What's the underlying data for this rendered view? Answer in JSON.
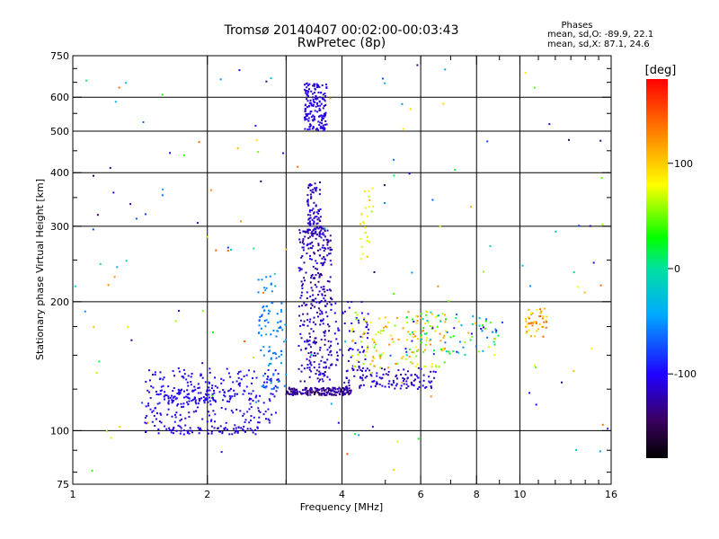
{
  "chart_data": {
    "type": "scatter",
    "title": "Tromsø 20140407 00:02:00-00:03:43",
    "subtitle": "RwPretec (8p)",
    "xlabel": "Frequency [MHz]",
    "ylabel": "Stationary phase Virtual Height [km]",
    "x_scale": "log",
    "y_scale": "log",
    "xlim": [
      1,
      16
    ],
    "ylim": [
      75,
      750
    ],
    "x_ticks": [
      1,
      2,
      4,
      6,
      8,
      10,
      16
    ],
    "x_tick_labels": [
      "1",
      "2",
      "4",
      "6",
      "8",
      "10",
      "16"
    ],
    "x_minor_ticks": [
      3,
      5,
      7,
      9,
      11,
      12,
      13,
      14,
      15
    ],
    "y_ticks": [
      75,
      100,
      200,
      300,
      400,
      500,
      600,
      750
    ],
    "y_tick_labels": [
      "75",
      "100",
      "200",
      "300",
      "400",
      "500",
      "600",
      "750"
    ],
    "y_minor_ticks": [
      80,
      90,
      125,
      150,
      175,
      250,
      350,
      450,
      550,
      650,
      700
    ],
    "grid_x": [
      2,
      3,
      4,
      6,
      8,
      10
    ],
    "grid_y": [
      100,
      200,
      300,
      400,
      500,
      600
    ],
    "phase_stats": {
      "heading": "Phases",
      "line1": "mean, sd,O: -89.9, 22.1",
      "line2": "mean, sd,X:  87.1, 24.6"
    },
    "colorbar": {
      "label": "[deg]",
      "range": [
        -180,
        180
      ],
      "ticks": [
        100,
        0,
        -100
      ],
      "tick_labels": [
        "100",
        "0",
        "-100"
      ]
    },
    "colors": {
      "grid": "#000000",
      "background": "#ffffff"
    },
    "clusters": [
      {
        "name": "o-trace-low",
        "x_range": [
          1.45,
          2.6
        ],
        "y_range": [
          98,
          103
        ],
        "n": 80,
        "phase": [
          -120,
          -100
        ]
      },
      {
        "name": "o-trace-rise",
        "x_range": [
          1.45,
          2.9
        ],
        "y_range": [
          104,
          140
        ],
        "n": 260,
        "phase": [
          -115,
          -90
        ]
      },
      {
        "name": "o-trace-e",
        "x_range": [
          1.6,
          2.1
        ],
        "y_range": [
          115,
          125
        ],
        "n": 70,
        "phase": [
          -110,
          -95
        ]
      },
      {
        "name": "cyan-rise",
        "x_range": [
          2.6,
          3.0
        ],
        "y_range": [
          125,
          200
        ],
        "n": 80,
        "phase": [
          -70,
          -45
        ]
      },
      {
        "name": "cyan-arm",
        "x_range": [
          2.6,
          2.9
        ],
        "y_range": [
          210,
          230
        ],
        "n": 12,
        "phase": [
          -60,
          -45
        ]
      },
      {
        "name": "f-trace-flat",
        "x_range": [
          3.0,
          4.2
        ],
        "y_range": [
          121,
          126
        ],
        "n": 180,
        "phase": [
          -150,
          -110
        ]
      },
      {
        "name": "f-column",
        "x_range": [
          3.2,
          3.8
        ],
        "y_range": [
          130,
          300
        ],
        "n": 330,
        "phase": [
          -140,
          -100
        ]
      },
      {
        "name": "f-column-high",
        "x_range": [
          3.35,
          3.6
        ],
        "y_range": [
          280,
          380
        ],
        "n": 90,
        "phase": [
          -130,
          -105
        ]
      },
      {
        "name": "spread-f",
        "x_range": [
          3.8,
          4.6
        ],
        "y_range": [
          140,
          200
        ],
        "n": 60,
        "phase": [
          -120,
          -95
        ]
      },
      {
        "name": "x-trace-low",
        "x_range": [
          4.0,
          6.5
        ],
        "y_range": [
          125,
          140
        ],
        "n": 120,
        "phase": [
          -130,
          -100
        ]
      },
      {
        "name": "x-trace-spread",
        "x_range": [
          4.2,
          6.8
        ],
        "y_range": [
          140,
          190
        ],
        "n": 130,
        "phase": [
          40,
          130
        ]
      },
      {
        "name": "x-high-col",
        "x_range": [
          4.4,
          4.7
        ],
        "y_range": [
          250,
          370
        ],
        "n": 25,
        "phase": [
          60,
          110
        ]
      },
      {
        "name": "mid-scatter",
        "x_range": [
          5.5,
          9.0
        ],
        "y_range": [
          150,
          190
        ],
        "n": 90,
        "phase": [
          -120,
          120
        ]
      },
      {
        "name": "x-blob",
        "x_range": [
          3.3,
          3.7
        ],
        "y_range": [
          500,
          650
        ],
        "n": 160,
        "phase": [
          -120,
          -100
        ]
      },
      {
        "name": "x-right",
        "x_range": [
          10.3,
          11.5
        ],
        "y_range": [
          165,
          195
        ],
        "n": 45,
        "phase": [
          80,
          150
        ]
      },
      {
        "name": "noise",
        "x_range": [
          1.0,
          16.0
        ],
        "y_range": [
          80,
          720
        ],
        "n": 150,
        "phase": [
          -150,
          150
        ]
      }
    ]
  }
}
